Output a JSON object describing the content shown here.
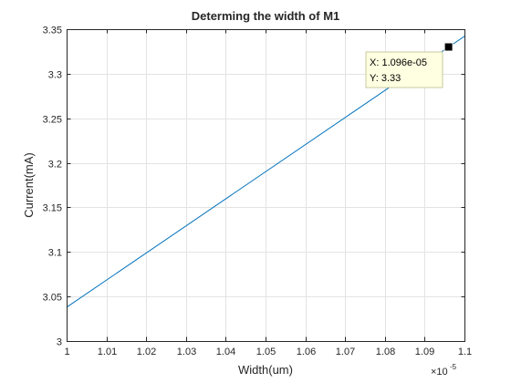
{
  "chart_data": {
    "type": "line",
    "title": "Determing the width of M1",
    "xlabel": "Width(um)",
    "ylabel": "Current(mA)",
    "xlim": [
      1.0,
      1.1
    ],
    "ylim": [
      3.0,
      3.35
    ],
    "x_exponent_prefix": "×10",
    "x_exponent_power": "-5",
    "x_ticks": [
      1.0,
      1.01,
      1.02,
      1.03,
      1.04,
      1.05,
      1.06,
      1.07,
      1.08,
      1.09,
      1.1
    ],
    "x_tick_labels": [
      "1",
      "1.01",
      "1.02",
      "1.03",
      "1.04",
      "1.05",
      "1.06",
      "1.07",
      "1.08",
      "1.09",
      "1.1"
    ],
    "y_ticks": [
      3.0,
      3.05,
      3.1,
      3.15,
      3.2,
      3.25,
      3.3,
      3.35
    ],
    "y_tick_labels": [
      "3",
      "3.05",
      "3.1",
      "3.15",
      "3.2",
      "3.25",
      "3.3",
      "3.35"
    ],
    "grid": true,
    "series": [
      {
        "color": "#0072bd",
        "x": [
          1.0,
          1.1
        ],
        "y": [
          3.038,
          3.342
        ]
      }
    ],
    "datatip": {
      "x": 1.096,
      "y": 3.33,
      "x_text": "X: 1.096e-05",
      "y_text": "Y: 3.33"
    }
  }
}
